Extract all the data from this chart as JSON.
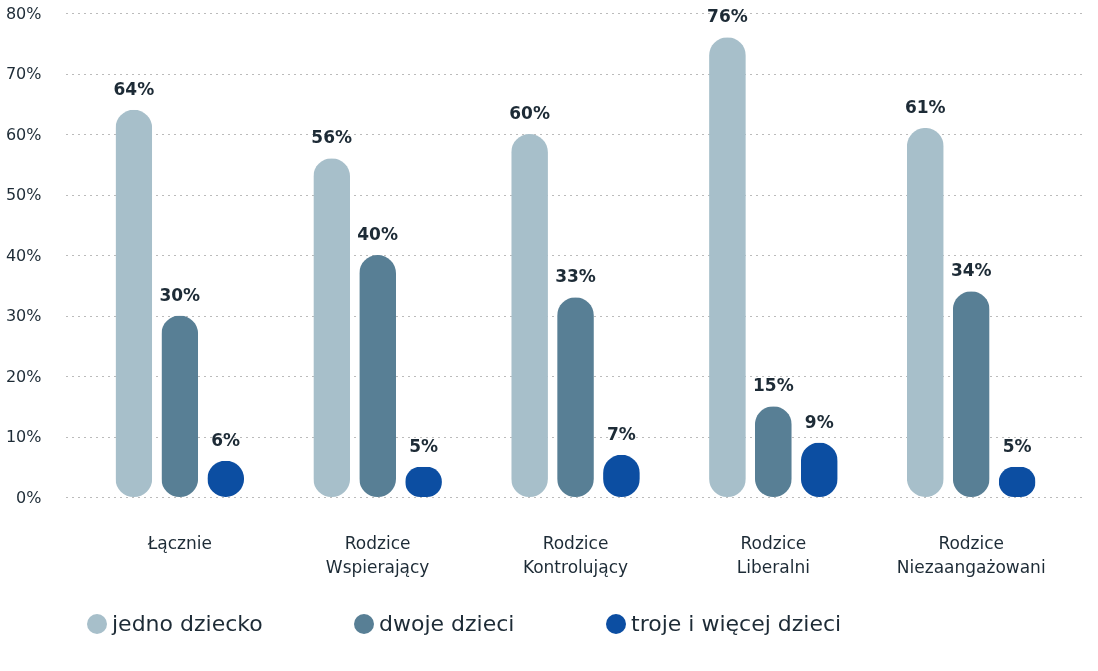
{
  "chart_data": {
    "type": "bar",
    "categories": [
      "Łącznie",
      "Rodzice Wspierający",
      "Rodzice Kontrolujący",
      "Rodzice Liberalni",
      "Rodzice Niezaangażowani"
    ],
    "series": [
      {
        "name": "jedno dziecko",
        "color": "#a7bfca",
        "values": [
          64,
          56,
          60,
          76,
          61
        ],
        "value_labels": [
          "64%",
          "56%",
          "60%",
          "76%",
          "61%"
        ]
      },
      {
        "name": "dwoje dzieci",
        "color": "#587f95",
        "values": [
          30,
          40,
          33,
          15,
          34
        ],
        "value_labels": [
          "30%",
          "40%",
          "33%",
          "15%",
          "34%"
        ]
      },
      {
        "name": "troje i więcej dzieci",
        "color": "#0c4ea2",
        "values": [
          6,
          5,
          7,
          9,
          5
        ],
        "value_labels": [
          "6%",
          "5%",
          "7%",
          "9%",
          "5%"
        ]
      }
    ],
    "ylim": [
      0,
      80
    ],
    "yticks": [
      {
        "value": 0,
        "label": "0%"
      },
      {
        "value": 10,
        "label": "10%"
      },
      {
        "value": 20,
        "label": "20%"
      },
      {
        "value": 30,
        "label": "30%"
      },
      {
        "value": 40,
        "label": "40%"
      },
      {
        "value": 50,
        "label": "50%"
      },
      {
        "value": 60,
        "label": "60%"
      },
      {
        "value": 70,
        "label": "70%"
      },
      {
        "value": 80,
        "label": "80%"
      }
    ],
    "grid": "y",
    "legend": "bottom"
  }
}
